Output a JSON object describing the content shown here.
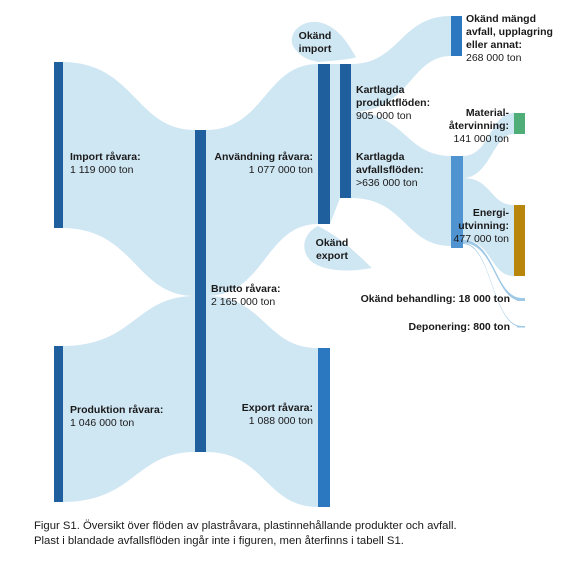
{
  "colors": {
    "flow": "#cfe6f3",
    "node_dark": "#1f5f9e",
    "node_mid": "#2b77c0",
    "node_light": "#4f93d0",
    "material": "#4fae78",
    "energy": "#b8860b",
    "thin_flow": "#9dc8e6"
  },
  "nodes": {
    "import": {
      "name": "Import råvara:",
      "value": "1 119 000 ton"
    },
    "produktion": {
      "name": "Produktion råvara:",
      "value": "1 046 000 ton"
    },
    "brutto": {
      "name": "Brutto råvara:",
      "value": "2 165 000 ton"
    },
    "anvandning": {
      "name": "Användning råvara:",
      "value": "1 077 000 ton"
    },
    "export": {
      "name": "Export råvara:",
      "value": "1 088 000 ton"
    },
    "okand_import": {
      "line1": "Okänd",
      "line2": "import"
    },
    "okand_export": {
      "line1": "Okänd",
      "line2": "export"
    },
    "produktfloden": {
      "line1": "Kartlagda",
      "line2": "produktflöden:",
      "value": "905 000 ton"
    },
    "avfallsfloden": {
      "line1": "Kartlagda",
      "line2": "avfallsflöden:",
      "value": ">636 000 ton"
    },
    "okand_mangd": {
      "line1": "Okänd mängd",
      "line2": "avfall, upplagring",
      "line3": "eller annat:",
      "value": "268 000 ton"
    },
    "material": {
      "line1": "Material-",
      "line2": "återvinning:",
      "value": "141 000 ton"
    },
    "energi": {
      "line1": "Energi-",
      "line2": "utvinning:",
      "value": "477 000 ton"
    },
    "okand_behandling": {
      "label": "Okänd behandling: 18 000 ton"
    },
    "deponering": {
      "label": "Deponering: 800 ton"
    }
  },
  "caption": {
    "line1": "Figur S1. Översikt över flöden av plastråvara, plastinnehållande produkter och avfall.",
    "line2": "Plast i blandade avfallsflöden ingår inte i figuren, men återfinns i tabell S1."
  }
}
